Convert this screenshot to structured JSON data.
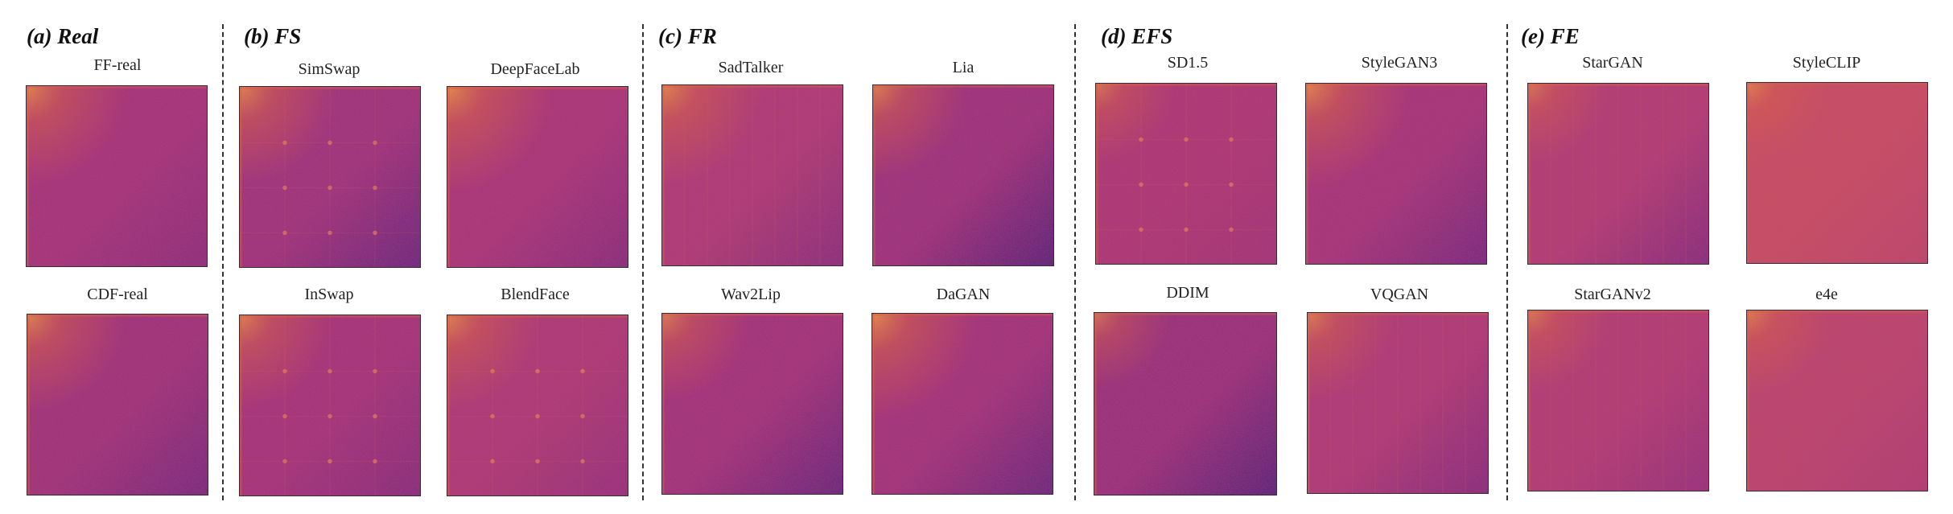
{
  "groups": {
    "real": {
      "title": "(a) Real",
      "labels": [
        "FF-real",
        "CDF-real"
      ]
    },
    "fs": {
      "title": "(b) FS",
      "labels": [
        "SimSwap",
        "DeepFaceLab",
        "InSwap",
        "BlendFace"
      ]
    },
    "fr": {
      "title": "(c) FR",
      "labels": [
        "SadTalker",
        "Lia",
        "Wav2Lip",
        "DaGAN"
      ]
    },
    "efs": {
      "title": "(d) EFS",
      "labels": [
        "SD1.5",
        "StyleGAN3",
        "DDIM",
        "VQGAN"
      ]
    },
    "fe": {
      "title": "(e) FE",
      "labels": [
        "StarGAN",
        "StyleCLIP",
        "StarGANv2",
        "e4e"
      ]
    }
  },
  "colors": {
    "corner": "#f7a336",
    "hot": "#e0633a",
    "mid": "#b8356b",
    "base": "#a03075",
    "cool": "#7a2a7e",
    "deep": "#5e2475",
    "edge": "#3a2a3a"
  },
  "panels": [
    {
      "id": "ff-real",
      "base": "#a83474",
      "cool": "#8f2e78",
      "warm": 0.6,
      "grid": false,
      "lines": false
    },
    {
      "id": "cdf-real",
      "base": "#a33374",
      "cool": "#7a2a7a",
      "warm": 0.55,
      "grid": false,
      "lines": false
    },
    {
      "id": "simswap",
      "base": "#a23376",
      "cool": "#6d2879",
      "warm": 0.55,
      "grid": true,
      "lines": false
    },
    {
      "id": "deepfacelab",
      "base": "#ac3673",
      "cool": "#8a2d78",
      "warm": 0.7,
      "grid": false,
      "lines": false
    },
    {
      "id": "inswap",
      "base": "#a83474",
      "cool": "#8a2d78",
      "warm": 0.5,
      "grid": true,
      "lines": false
    },
    {
      "id": "blendface",
      "base": "#b03a70",
      "cool": "#9a3176",
      "warm": 0.5,
      "grid": true,
      "lines": false
    },
    {
      "id": "sadtalker",
      "base": "#b13b70",
      "cool": "#8d2f77",
      "warm": 0.6,
      "grid": false,
      "lines": true
    },
    {
      "id": "lia",
      "base": "#a03276",
      "cool": "#5c2474",
      "warm": 0.5,
      "grid": false,
      "lines": false
    },
    {
      "id": "wav2lip",
      "base": "#a53375",
      "cool": "#6a2778",
      "warm": 0.4,
      "grid": false,
      "lines": false
    },
    {
      "id": "dagan",
      "base": "#a53375",
      "cool": "#6c2878",
      "warm": 0.7,
      "grid": false,
      "lines": false
    },
    {
      "id": "sd15",
      "base": "#b0386f",
      "cool": "#a53473",
      "warm": 0.25,
      "grid": true,
      "lines": false
    },
    {
      "id": "stylegan3",
      "base": "#a93574",
      "cool": "#7a2a7a",
      "warm": 0.65,
      "grid": false,
      "lines": false
    },
    {
      "id": "ddim",
      "base": "#9c3176",
      "cool": "#5c2474",
      "warm": 0.2,
      "grid": false,
      "lines": false
    },
    {
      "id": "vqgan",
      "base": "#b23b70",
      "cool": "#8a2d78",
      "warm": 0.4,
      "grid": false,
      "lines": true
    },
    {
      "id": "stargan",
      "base": "#b63d6e",
      "cool": "#8a2d78",
      "warm": 0.25,
      "grid": false,
      "lines": true
    },
    {
      "id": "styleclip",
      "base": "#cc4e5c",
      "cool": "#c24764",
      "warm": 0.3,
      "grid": false,
      "lines": false
    },
    {
      "id": "starganv2",
      "base": "#b63d6e",
      "cool": "#9a3176",
      "warm": 0.3,
      "grid": false,
      "lines": true
    },
    {
      "id": "e4e",
      "base": "#c04566",
      "cool": "#b53d6d",
      "warm": 0.35,
      "grid": false,
      "lines": false
    }
  ]
}
